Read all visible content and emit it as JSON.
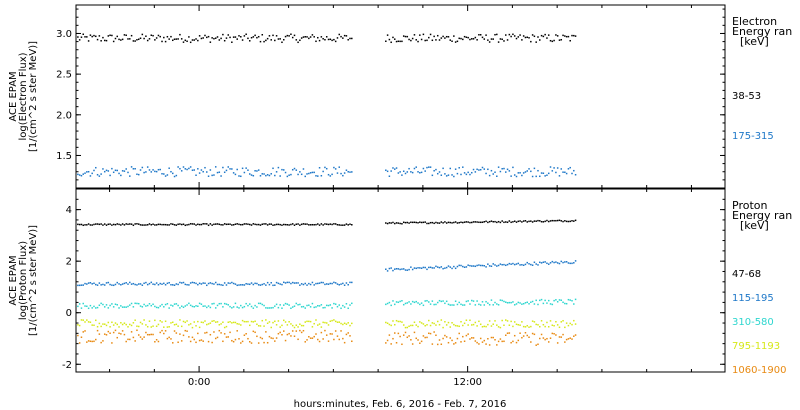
{
  "xaxis": {
    "label": "hours:minutes, Feb.  6, 2016 - Feb.  7, 2016",
    "ticks": [
      {
        "label": "0:00",
        "hours": 0
      },
      {
        "label": "12:00",
        "hours": 12
      }
    ],
    "range_hours": [
      -5.5,
      23.5
    ],
    "gap_hours": [
      6.8,
      8.3
    ],
    "data_end_hours": 16.8
  },
  "colors": {
    "black": "#000000",
    "blue": "#1f78c8",
    "cyan": "#2ed6cf",
    "yellow": "#d6e81a",
    "orange": "#e88a12"
  },
  "chart_data": [
    {
      "type": "scatter",
      "ylabel_lines": [
        "ACE EPAM",
        "log(Electron Flux)",
        "[1/(cm^2 s ster MeV)]"
      ],
      "ylim": [
        1.1,
        3.35
      ],
      "yticks": [
        {
          "label": "1.5",
          "value": 1.5
        },
        {
          "label": "2.0",
          "value": 2.0
        },
        {
          "label": "2.5",
          "value": 2.5
        },
        {
          "label": "3.0",
          "value": 3.0
        }
      ],
      "legend": {
        "title_lines": [
          "Electron",
          "Energy ran",
          "[keV]"
        ],
        "entries": [
          {
            "label": "38-53",
            "color": "#000000"
          },
          {
            "label": "175-315",
            "color": "#1f78c8"
          }
        ]
      },
      "series": [
        {
          "color": "#000000",
          "level": 2.95,
          "spread": 0.05
        },
        {
          "color": "#1f78c8",
          "level": 1.31,
          "spread": 0.06
        }
      ]
    },
    {
      "type": "scatter",
      "ylabel_lines": [
        "ACE EPAM",
        "log(Proton Flux)",
        "[1/(cm^2 s ster MeV)]"
      ],
      "ylim": [
        -2.3,
        4.8
      ],
      "yticks": [
        {
          "label": "4",
          "value": 4
        },
        {
          "label": "2",
          "value": 2
        },
        {
          "label": "0",
          "value": 0
        },
        {
          "label": "-2",
          "value": -2
        }
      ],
      "legend": {
        "title_lines": [
          "Proton",
          "Energy ran",
          "[keV]"
        ],
        "entries": [
          {
            "label": "47-68",
            "color": "#000000"
          },
          {
            "label": "115-195",
            "color": "#1f78c8"
          },
          {
            "label": "310-580",
            "color": "#2ed6cf"
          },
          {
            "label": "795-1193",
            "color": "#d6e81a"
          },
          {
            "label": "1060-1900",
            "color": "#e88a12"
          }
        ]
      },
      "series": [
        {
          "color": "#000000",
          "level_before": 3.45,
          "level_after": 3.5,
          "level_end": 3.6,
          "spread": 0.03
        },
        {
          "color": "#1f78c8",
          "level_before": 1.15,
          "level_after": 1.7,
          "level_end": 2.0,
          "spread": 0.06
        },
        {
          "color": "#2ed6cf",
          "level_before": 0.3,
          "level_after": 0.4,
          "level_end": 0.45,
          "spread": 0.1
        },
        {
          "color": "#d6e81a",
          "level_before": -0.4,
          "level_after": -0.4,
          "level_end": -0.4,
          "spread": 0.15
        },
        {
          "color": "#e88a12",
          "level_before": -0.9,
          "level_after": -0.95,
          "level_end": -1.0,
          "spread": 0.25
        }
      ]
    }
  ]
}
